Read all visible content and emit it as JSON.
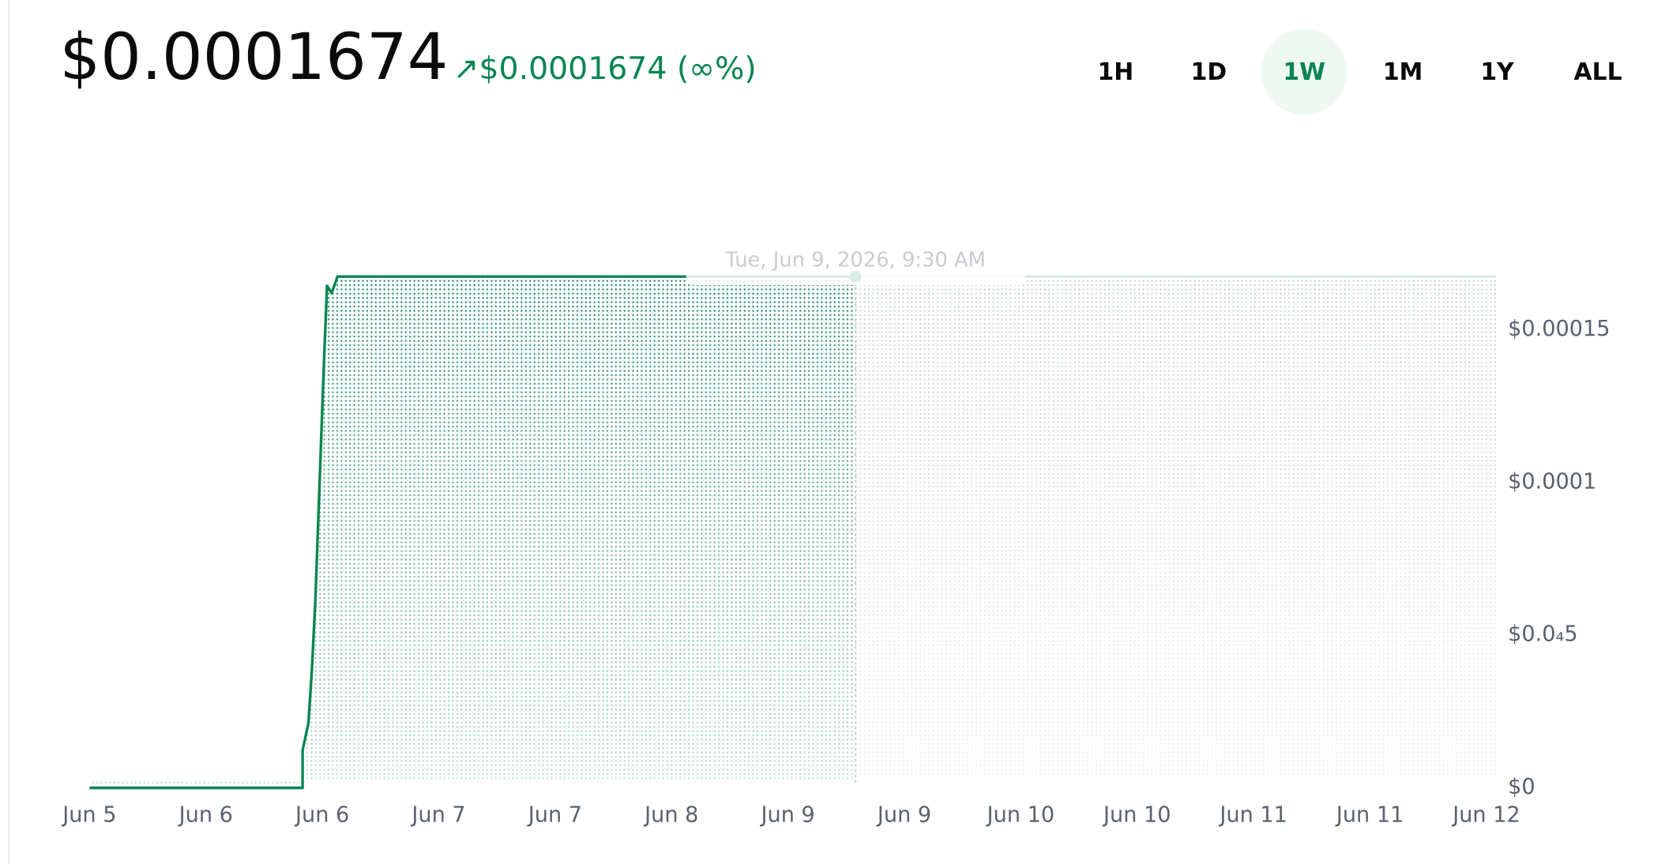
{
  "header": {
    "price": "$0.0001674",
    "change": "↗$0.0001674 (∞%)",
    "ranges": [
      "1H",
      "1D",
      "1W",
      "1M",
      "1Y",
      "ALL"
    ],
    "active_range": 2
  },
  "chart_data": {
    "type": "line",
    "tooltip": "Tue, Jun 9, 2026, 9:30 AM",
    "series": [
      {
        "color": "#098551",
        "x": [
          0,
          1.83,
          1.83,
          1.88,
          1.91,
          1.94,
          1.98,
          2.01,
          2.04,
          2.08,
          2.13,
          6.58
        ],
        "values": [
          0,
          0,
          1.23e-05,
          2.11e-05,
          3.87e-05,
          6.16e-05,
          0.000104,
          0.0001356,
          0.0001644,
          0.000162,
          0.0001674,
          0.0001674
        ]
      }
    ],
    "xlim": [
      0,
      12
    ],
    "xticks": [
      {
        "value": 0,
        "label": "Jun 5"
      },
      {
        "value": 1,
        "label": "Jun 6"
      },
      {
        "value": 2,
        "label": "Jun 6"
      },
      {
        "value": 3,
        "label": "Jun 7"
      },
      {
        "value": 4,
        "label": "Jun 7"
      },
      {
        "value": 5,
        "label": "Jun 8"
      },
      {
        "value": 6,
        "label": "Jun 9"
      },
      {
        "value": 7,
        "label": "Jun 9"
      },
      {
        "value": 8,
        "label": "Jun 10"
      },
      {
        "value": 9,
        "label": "Jun 10"
      },
      {
        "value": 10,
        "label": "Jun 11"
      },
      {
        "value": 11,
        "label": "Jun 11"
      },
      {
        "value": 12,
        "label": "Jun 12"
      }
    ],
    "ylim": [
      0,
      0.0001674
    ],
    "yticks": [
      {
        "value": 0,
        "label": "$0"
      },
      {
        "value": 5e-05,
        "label": "$0.0₄5"
      },
      {
        "value": 0.0001,
        "label": "$0.0001"
      },
      {
        "value": 0.00015,
        "label": "$0.00015"
      }
    ]
  }
}
